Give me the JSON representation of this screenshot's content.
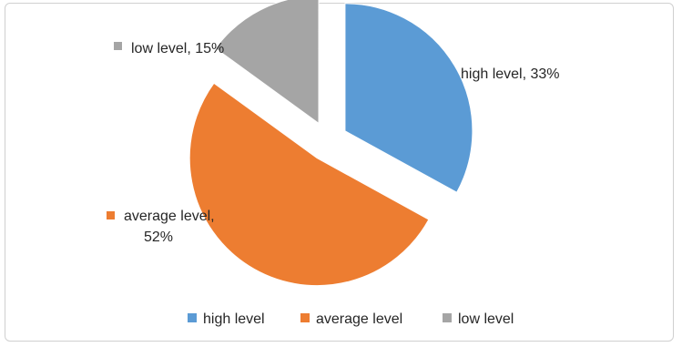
{
  "chart_data": {
    "type": "pie",
    "title": "",
    "slices": [
      {
        "name": "high level",
        "value": 33,
        "color": "#5B9BD5",
        "label_name": "high level",
        "label_value": "33%"
      },
      {
        "name": "average level",
        "value": 52,
        "color": "#ED7D31",
        "label_name": "average level,",
        "label_value": "52%"
      },
      {
        "name": "low level",
        "value": 15,
        "color": "#A5A5A5",
        "label_name": "low level",
        "label_value": "15%"
      }
    ],
    "exploded": true,
    "legend": {
      "position": "bottom",
      "entries": [
        "high level",
        "average level",
        "low level"
      ]
    }
  }
}
